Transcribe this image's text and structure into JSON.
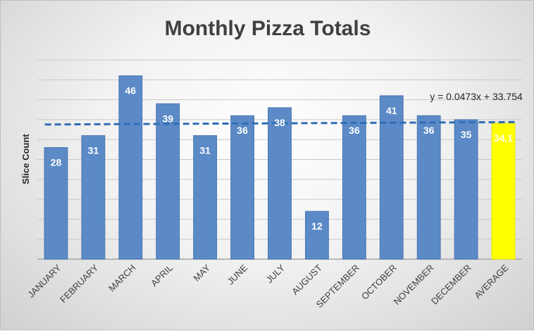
{
  "chart_data": {
    "type": "bar",
    "title": "Monthly Pizza Totals",
    "xlabel": "",
    "ylabel": "Slice Count",
    "ylim": [
      0,
      50
    ],
    "categories": [
      "JANUARY",
      "FEBRUARY",
      "MARCH",
      "APRIL",
      "MAY",
      "JUNE",
      "JULY",
      "AUGUST",
      "SEPTEMBER",
      "OCTOBER",
      "NOVEMBER",
      "DECEMBER",
      "AVERAGE"
    ],
    "values": [
      28,
      31,
      46,
      39,
      31,
      36,
      38,
      12,
      36,
      41,
      36,
      35,
      34.1
    ],
    "data_labels": [
      "28",
      "31",
      "46",
      "39",
      "31",
      "36",
      "38",
      "12",
      "36",
      "41",
      "36",
      "35",
      "34.1"
    ],
    "highlight_category": "AVERAGE",
    "trendline": {
      "type": "linear",
      "slope": 0.0473,
      "intercept": 33.754,
      "equation": "y = 0.0473x + 33.754"
    },
    "grid": true,
    "colors": {
      "bar": "#5b8ac7",
      "bar_edge": "#4a76b0",
      "highlight": "#ffff00",
      "trendline": "#2f6db5",
      "gridline": "#c8c8c8",
      "axis": "#a6a6a6"
    }
  }
}
